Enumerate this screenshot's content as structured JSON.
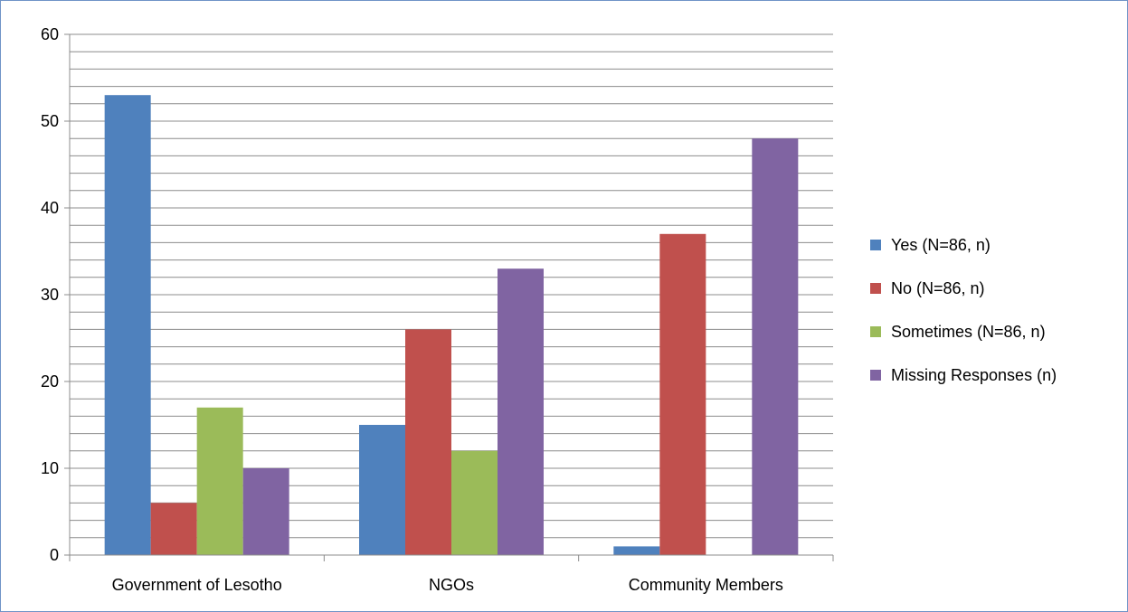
{
  "chart_data": {
    "type": "bar",
    "title": "",
    "xlabel": "",
    "ylabel": "",
    "ylim": [
      0,
      60
    ],
    "y_ticks": [
      0,
      10,
      20,
      30,
      40,
      50,
      60
    ],
    "grid": true,
    "legend_position": "right",
    "categories": [
      "Government of Lesotho",
      "NGOs",
      "Community Members"
    ],
    "series": [
      {
        "name": "Yes (N=86, n)",
        "color": "#4f81bd",
        "values": [
          53,
          15,
          1
        ]
      },
      {
        "name": "No (N=86, n)",
        "color": "#c0504d",
        "values": [
          6,
          26,
          37
        ]
      },
      {
        "name": "Sometimes (N=86, n)",
        "color": "#9bbb59",
        "values": [
          17,
          12,
          0
        ]
      },
      {
        "name": "Missing Responses (n)",
        "color": "#8064a2",
        "values": [
          10,
          33,
          48
        ]
      }
    ]
  }
}
